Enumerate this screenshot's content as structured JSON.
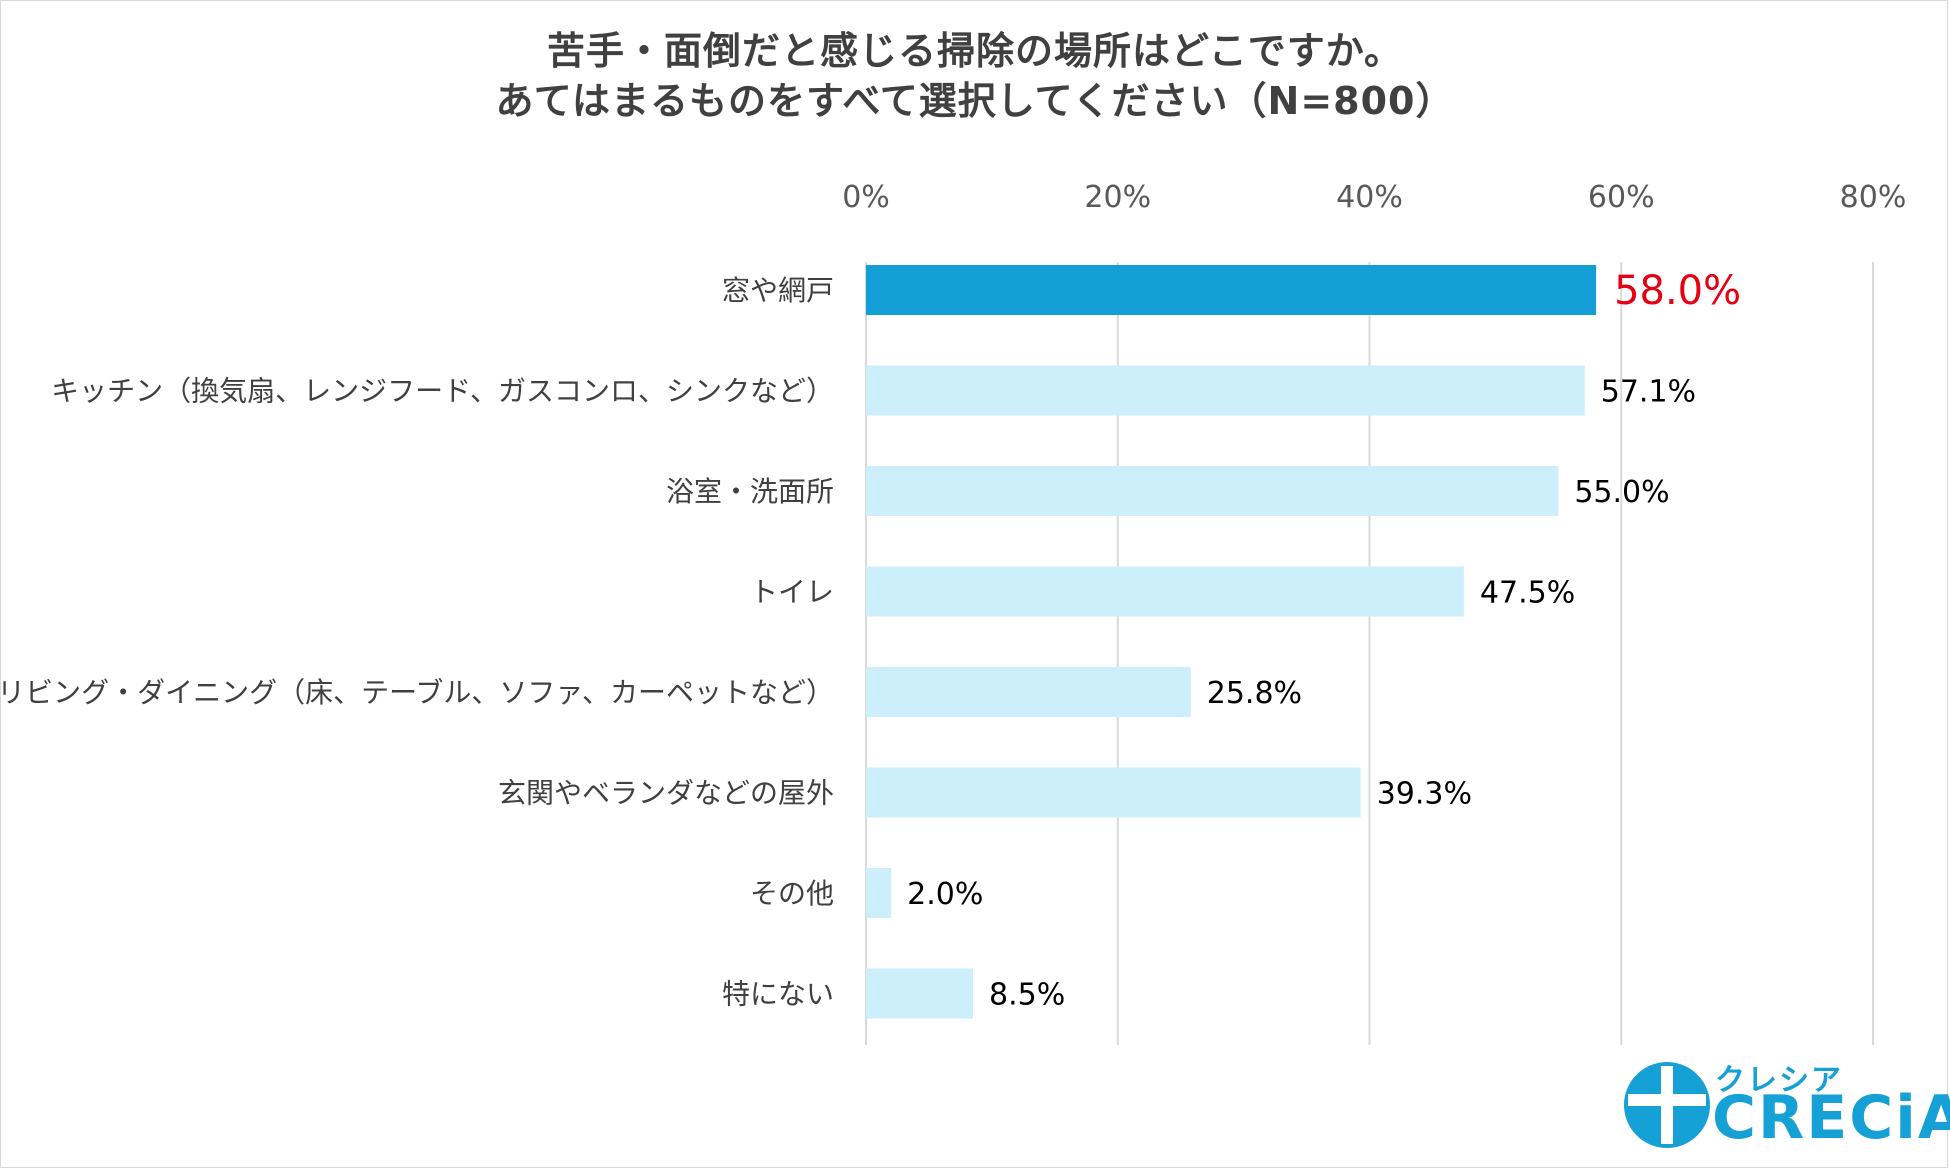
{
  "chart_data": {
    "type": "bar",
    "orientation": "horizontal",
    "title": "苦手・面倒だと感じる掃除の場所はどこですか。",
    "subtitle": "あてはまるものをすべて選択してください（N=800）",
    "categories": [
      "窓や網戸",
      "キッチン（換気扇、レンジフード、ガスコンロ、シンクなど）",
      "浴室・洗面所",
      "トイレ",
      "リビング・ダイニング（床、テーブル、ソファ、カーペットなど）",
      "玄関やベランダなどの屋外",
      "その他",
      "特にない"
    ],
    "values": [
      58.0,
      57.1,
      55.0,
      47.5,
      25.8,
      39.3,
      2.0,
      8.5
    ],
    "value_labels": [
      "58.0%",
      "57.1%",
      "55.0%",
      "47.5%",
      "25.8%",
      "39.3%",
      "2.0%",
      "8.5%"
    ],
    "xlim": [
      0,
      80
    ],
    "x_ticks": [
      "0%",
      "20%",
      "40%",
      "60%",
      "80%"
    ],
    "x_tick_values": [
      0,
      20,
      40,
      60,
      80
    ],
    "axis_position": "top",
    "grid": true,
    "highlight_index": 0,
    "colors": {
      "highlight_bar": "#139fd6",
      "bar": "#cdeefb",
      "highlight_label": "#e60012",
      "label": "#000000",
      "grid": "#d9d9d9",
      "category_text": "#404040",
      "tick_text": "#595959"
    }
  },
  "logo": {
    "small_text": "クレシア",
    "main_text": "CRECiA",
    "icon": "crecia-cross-circle-icon",
    "color": "#16a1d6"
  }
}
